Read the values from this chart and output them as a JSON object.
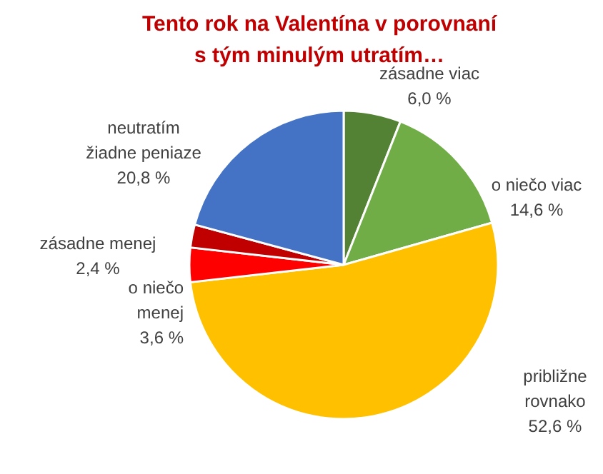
{
  "chart_data": {
    "type": "pie",
    "title": "Tento rok na Valentína v porovnaní\ns tým minulým utratím…",
    "categories": [
      "zásadne viac",
      "o niečo viac",
      "približne rovnako",
      "o niečo menej",
      "zásadne menej",
      "neutratím žiadne peniaze"
    ],
    "values": [
      6.0,
      14.6,
      52.6,
      3.6,
      2.4,
      20.8
    ],
    "value_labels": [
      "6,0 %",
      "14,6 %",
      "52,6 %",
      "3,6 %",
      "2,4 %",
      "20,8 %"
    ],
    "colors": [
      "#548235",
      "#70ad47",
      "#ffc000",
      "#ff0000",
      "#c00000",
      "#4472c4"
    ]
  }
}
